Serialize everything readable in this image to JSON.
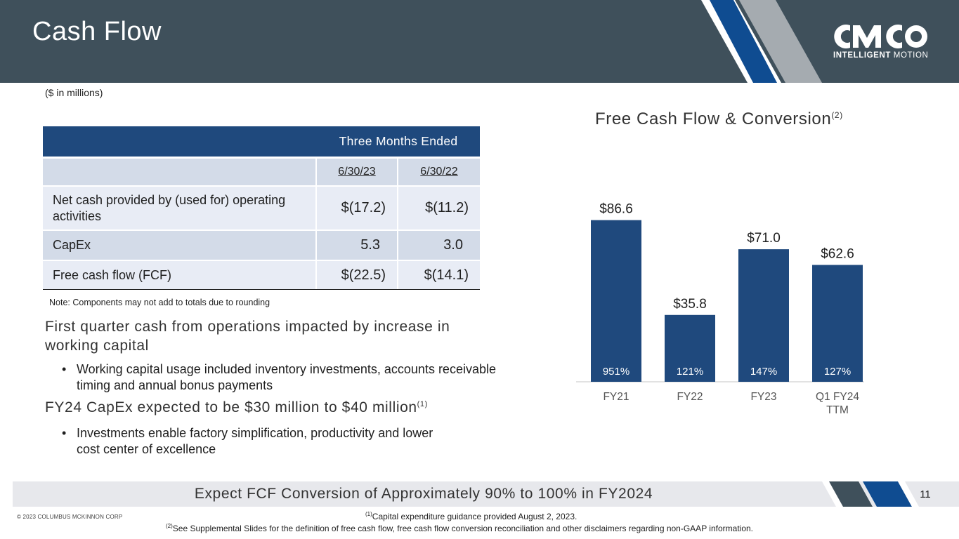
{
  "header": {
    "title": "Cash Flow",
    "logo_main": "CMCO",
    "logo_sub_bold": "INTELLIGENT",
    "logo_sub_light": "MOTION"
  },
  "units_note": "($ in millions)",
  "table": {
    "header_label": "Three Months Ended",
    "dates": [
      "6/30/23",
      "6/30/22"
    ],
    "rows": [
      {
        "label": "Net cash provided by (used for) operating activities",
        "v1": "$(17.2)",
        "v2": "$(11.2)"
      },
      {
        "label": "CapEx",
        "v1": "5.3",
        "v2": "3.0"
      },
      {
        "label": "Free cash flow (FCF)",
        "v1": "$(22.5)",
        "v2": "$(14.1)"
      }
    ],
    "note": "Note: Components may not add to totals due to rounding"
  },
  "bullets": {
    "heading1": "First quarter cash from operations impacted by increase in working capital",
    "bullet1": "Working capital usage included inventory investments, accounts receivable timing and annual bonus payments",
    "heading2": "FY24 CapEx expected to be $30 million to $40 million",
    "heading2_sup": "(1)",
    "bullet2": "Investments enable factory simplification, productivity and lower cost center of excellence",
    "bullet_glyph": "•"
  },
  "chart_data": {
    "type": "bar",
    "title": "Free Cash Flow & Conversion",
    "title_sup": "(2)",
    "categories": [
      "FY21",
      "FY22",
      "FY23",
      "Q1 FY24 TTM"
    ],
    "category_lines": [
      [
        "FY21"
      ],
      [
        "FY22"
      ],
      [
        "FY23"
      ],
      [
        "Q1 FY24",
        "TTM"
      ]
    ],
    "values": [
      86.6,
      35.8,
      71.0,
      62.6
    ],
    "value_labels": [
      "$86.6",
      "$35.8",
      "$71.0",
      "$62.6"
    ],
    "conversion_labels": [
      "951%",
      "121%",
      "147%",
      "127%"
    ],
    "ylim": [
      0,
      100
    ],
    "grid": false,
    "bar_color": "#1f497d"
  },
  "banner": {
    "text": "Expect FCF Conversion of Approximately 90% to 100% in FY2024",
    "page_number": "11"
  },
  "footer": {
    "copyright": "© 2023 COLUMBUS MCKINNON CORP",
    "footnote1_sup": "(1)",
    "footnote1": "Capital expenditure guidance provided August 2, 2023.",
    "footnote2_sup": "(2)",
    "footnote2": "See Supplemental Slides for the definition of free cash flow, free cash flow conversion reconciliation and other disclaimers regarding non-GAAP information."
  },
  "colors": {
    "header_bg": "#3f505b",
    "navy": "#1f497d",
    "blue_stripe": "#0f4c91",
    "grey_stripe": "#a5abb0",
    "slate_stripe": "#3f505b"
  }
}
